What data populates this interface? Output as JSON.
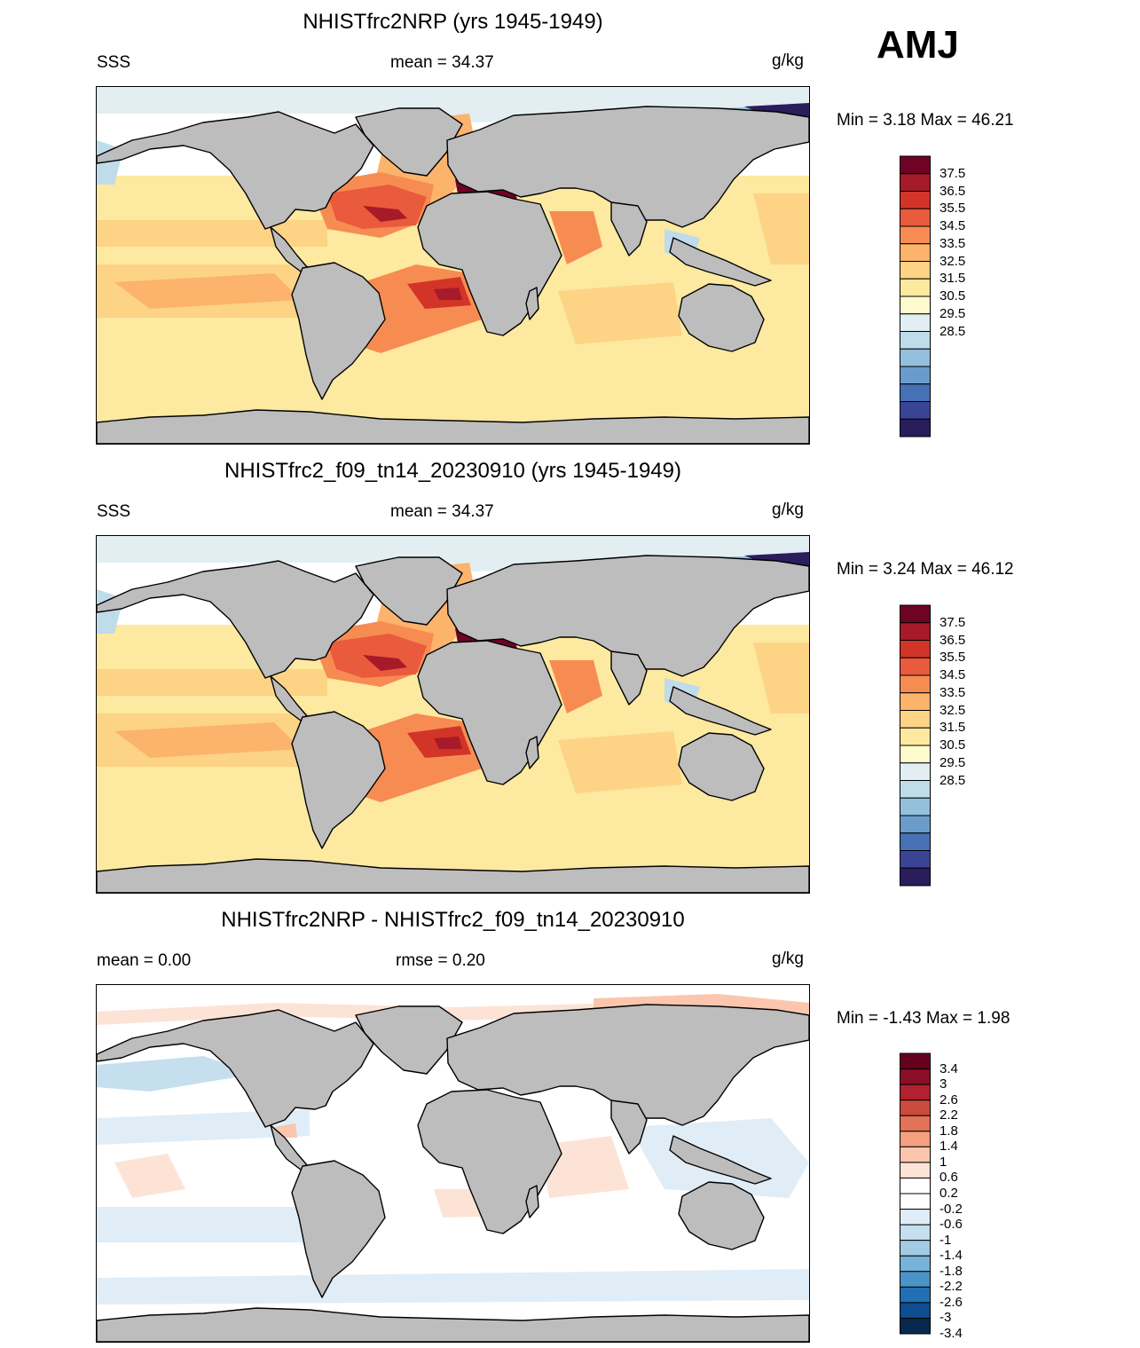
{
  "season_label": "AMJ",
  "palette": {
    "land": "#bdbdbd",
    "sss_colors": [
      "#2a1d5c",
      "#3a4496",
      "#4671b5",
      "#6a9ccb",
      "#93c1dd",
      "#bfdceb",
      "#e2eef2",
      "#fdfbcd",
      "#fde9a0",
      "#fdd385",
      "#fcb36b",
      "#f78c52",
      "#ea5a3c",
      "#d23427",
      "#a71a29",
      "#6e0326"
    ],
    "diff_colors": [
      "#08284e",
      "#0e4d8f",
      "#2170b4",
      "#4a94c7",
      "#77b2d8",
      "#a1cce4",
      "#c5dfee",
      "#e1edf6",
      "#ffffff",
      "#ffffff",
      "#fde3d6",
      "#fbc6ad",
      "#f5a081",
      "#e27356",
      "#cc4a3e",
      "#b0222f",
      "#8a0e27",
      "#67001f"
    ]
  },
  "panels": [
    {
      "title": "NHISTfrc2NRP (yrs 1945-1949)",
      "left_label": "SSS",
      "center_label": "mean =  34.37",
      "units": "g/kg",
      "minmax": "Min =   3.18 Max =  46.21",
      "kind": "sss",
      "colorbar_labels": [
        "37.5",
        "36.5",
        "35.5",
        "34.5",
        "33.5",
        "32.5",
        "31.5",
        "30.5",
        "29.5",
        "28.5"
      ]
    },
    {
      "title": "NHISTfrc2_f09_tn14_20230910 (yrs 1945-1949)",
      "left_label": "SSS",
      "center_label": "mean =  34.37",
      "units": "g/kg",
      "minmax": "Min =   3.24 Max =  46.12",
      "kind": "sss",
      "colorbar_labels": [
        "37.5",
        "36.5",
        "35.5",
        "34.5",
        "33.5",
        "32.5",
        "31.5",
        "30.5",
        "29.5",
        "28.5"
      ]
    },
    {
      "title": "NHISTfrc2NRP - NHISTfrc2_f09_tn14_20230910",
      "left_label": "mean =    0.00",
      "center_label": "rmse =    0.20",
      "units": "g/kg",
      "minmax": "Min =  -1.43 Max =    1.98",
      "kind": "diff",
      "colorbar_labels": [
        "3.4",
        "3",
        "2.6",
        "2.2",
        "1.8",
        "1.4",
        "1",
        "0.6",
        "0.2",
        "-0.2",
        "-0.6",
        "-1",
        "-1.4",
        "-1.8",
        "-2.2",
        "-2.6",
        "-3",
        "-3.4"
      ]
    }
  ]
}
